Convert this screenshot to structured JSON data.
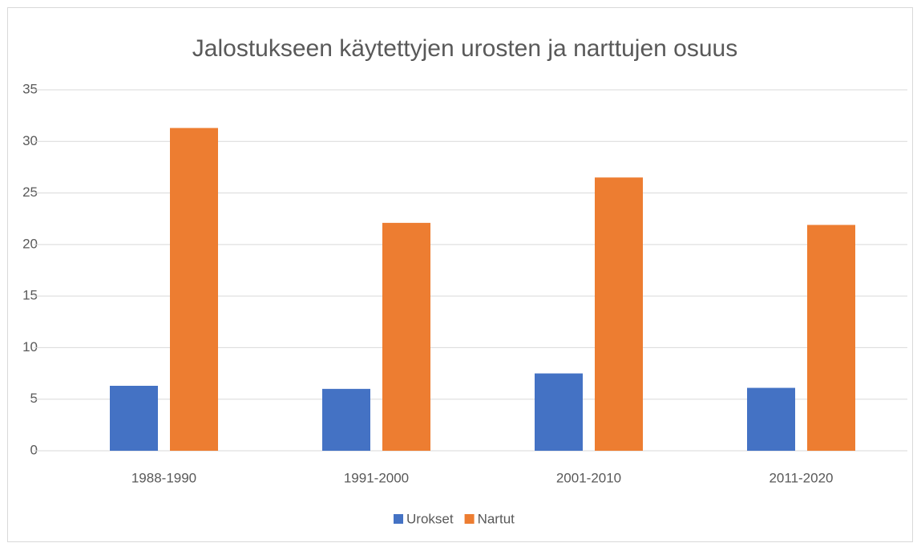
{
  "chart_data": {
    "type": "bar",
    "title": "Jalostukseen käytettyjen urosten ja narttujen osuus",
    "categories": [
      "1988-1990",
      "1991-2000",
      "2001-2010",
      "2011-2020"
    ],
    "series": [
      {
        "name": "Urokset",
        "color": "#4472c4",
        "values": [
          6.3,
          6.0,
          7.5,
          6.1
        ]
      },
      {
        "name": "Nartut",
        "color": "#ed7d31",
        "values": [
          31.3,
          22.1,
          26.5,
          21.9
        ]
      }
    ],
    "ylim": [
      0,
      35
    ],
    "yticks": [
      0,
      5,
      10,
      15,
      20,
      25,
      30,
      35
    ],
    "grid": true,
    "legend": "bottom"
  }
}
